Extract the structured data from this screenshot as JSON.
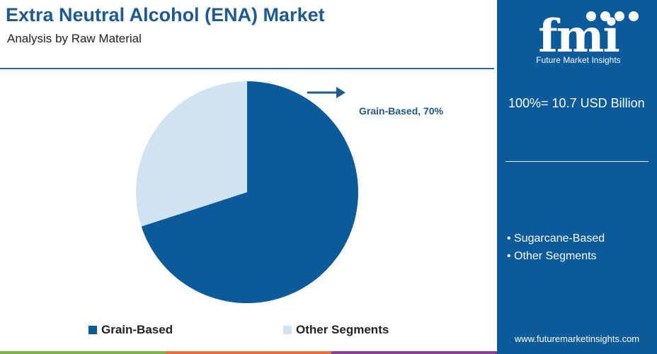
{
  "header": {
    "title": "Extra Neutral Alcohol (ENA) Market",
    "subtitle": "Analysis by Raw Material"
  },
  "chart_data": {
    "type": "pie",
    "title": "Extra Neutral Alcohol (ENA) Market",
    "subtitle": "Analysis by Raw Material",
    "categories": [
      "Grain-Based",
      "Other Segments"
    ],
    "values": [
      70,
      30
    ],
    "unit": "%",
    "colors": [
      "#0b5a9c",
      "#cfe3f3"
    ],
    "callout": "Grain-Based, 70%",
    "legend": {
      "placement": "bottom",
      "entries": [
        "Grain-Based",
        "Other Segments"
      ]
    }
  },
  "side_panel": {
    "background": "#0b5a9c",
    "logo_letters": "fmi",
    "logo_tagline": "Future Market Insights",
    "total_label": "100%= 10.7 USD Billion",
    "other_segments": [
      "Sugarcane-Based",
      "Other Segments"
    ],
    "website": "www.futuremarketinsights.com"
  },
  "bottom_bar_colors": [
    "#7db542",
    "#e8733a",
    "#8b3f98"
  ],
  "icons": {
    "callout_arrow": "right-arrow-icon"
  }
}
